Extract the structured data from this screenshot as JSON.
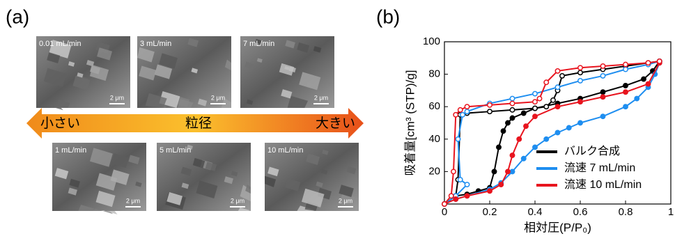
{
  "panel_a": {
    "label": "(a)",
    "images": [
      {
        "label": "0.01 mL/min",
        "scale": "2 μm"
      },
      {
        "label": "3 mL/min",
        "scale": "2 μm"
      },
      {
        "label": "7 mL/min",
        "scale": "2 μm"
      },
      {
        "label": "1 mL/min",
        "scale": "2 μm"
      },
      {
        "label": "5 mL/min",
        "scale": "2 μm"
      },
      {
        "label": "10 mL/min",
        "scale": "2 μm"
      }
    ],
    "arrow": {
      "left": "小さい",
      "center": "粒径",
      "right": "大きい"
    }
  },
  "chart_data": {
    "type": "line",
    "panel_label": "(b)",
    "x_label": "相対圧(P/P₀)",
    "y_label": "吸着量[cm³ (STP)/g]",
    "xlim": [
      0,
      1
    ],
    "xticks": [
      0,
      0.2,
      0.4,
      0.6,
      0.8,
      1
    ],
    "ylim": [
      0,
      100
    ],
    "yticks": [
      20,
      40,
      60,
      80,
      100
    ],
    "legend": "lower right",
    "series": [
      {
        "name": "バルク合成",
        "color": "#000000",
        "x": [
          0,
          0.05,
          0.1,
          0.15,
          0.2,
          0.22,
          0.24,
          0.26,
          0.28,
          0.3,
          0.35,
          0.4,
          0.5,
          0.6,
          0.7,
          0.8,
          0.88,
          0.92,
          0.95
        ],
        "values": [
          0,
          5,
          6,
          8,
          10,
          20,
          35,
          45,
          50,
          53,
          56,
          59,
          62,
          65,
          69,
          73,
          77,
          82,
          88
        ],
        "desorption_x": [
          0.95,
          0.9,
          0.8,
          0.7,
          0.6,
          0.52,
          0.5,
          0.48,
          0.45,
          0.4,
          0.3,
          0.2,
          0.1,
          0.07,
          0.06,
          0.05,
          0
        ],
        "desorption_values": [
          88,
          87,
          85,
          83,
          81,
          79,
          70,
          64,
          60,
          59,
          58,
          57,
          56,
          55,
          15,
          5,
          0
        ]
      },
      {
        "name": "流速 7 mL/min",
        "color": "#1e8ef0",
        "x": [
          0,
          0.05,
          0.1,
          0.2,
          0.25,
          0.3,
          0.35,
          0.4,
          0.45,
          0.5,
          0.55,
          0.6,
          0.7,
          0.8,
          0.85,
          0.9,
          0.93,
          0.95
        ],
        "values": [
          0,
          3,
          5,
          9,
          13,
          20,
          28,
          35,
          40,
          44,
          47,
          50,
          54,
          60,
          65,
          72,
          80,
          87
        ],
        "desorption_x": [
          0.95,
          0.9,
          0.8,
          0.7,
          0.6,
          0.5,
          0.4,
          0.3,
          0.2,
          0.1,
          0.08,
          0.06,
          0.07,
          0.1,
          0.05,
          0
        ],
        "desorption_values": [
          88,
          86,
          83,
          79,
          76,
          72,
          68,
          65,
          62,
          57,
          55,
          40,
          15,
          12,
          5,
          0
        ]
      },
      {
        "name": "流速 10 mL/min",
        "color": "#e8141e",
        "x": [
          0,
          0.05,
          0.1,
          0.2,
          0.25,
          0.28,
          0.3,
          0.33,
          0.36,
          0.4,
          0.5,
          0.6,
          0.7,
          0.8,
          0.9,
          0.95
        ],
        "values": [
          0,
          3,
          5,
          8,
          12,
          20,
          30,
          40,
          48,
          54,
          60,
          63,
          66,
          69,
          74,
          87
        ],
        "desorption_x": [
          0.95,
          0.9,
          0.8,
          0.7,
          0.6,
          0.5,
          0.45,
          0.42,
          0.4,
          0.3,
          0.2,
          0.1,
          0.07,
          0.05,
          0.04,
          0.03,
          0
        ],
        "desorption_values": [
          88,
          87,
          86,
          85,
          84,
          82,
          75,
          65,
          63,
          62,
          61,
          60,
          58,
          55,
          20,
          5,
          0
        ]
      }
    ]
  }
}
